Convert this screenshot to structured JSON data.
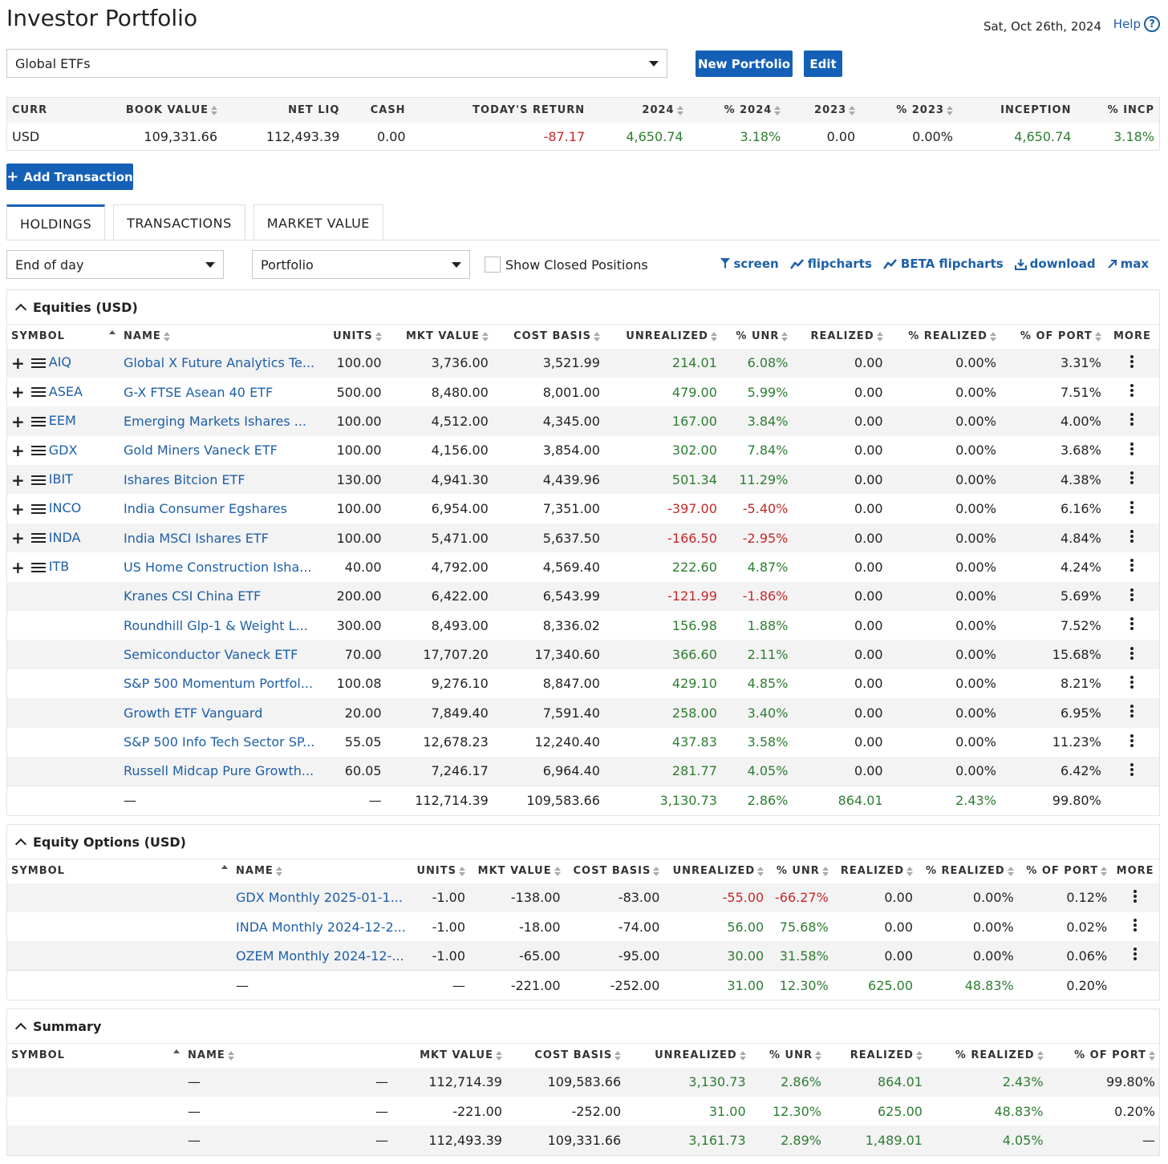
{
  "header": {
    "title": "Investor Portfolio",
    "date": "Sat, Oct 26th, 2024",
    "help_label": "Help",
    "help_icon": "?"
  },
  "portfolio_select": {
    "value": "Global ETFs"
  },
  "buttons": {
    "new_portfolio": "New Portfolio",
    "edit": "Edit",
    "add_transaction": "Add Transaction",
    "add_transaction_icon": "+"
  },
  "summary": {
    "headers": [
      "CURR",
      "BOOK VALUE",
      "NET LIQ",
      "CASH",
      "TODAY'S RETURN",
      "2024",
      "% 2024",
      "2023",
      "% 2023",
      "INCEPTION",
      "% INCP"
    ],
    "values": [
      "USD",
      "109,331.66",
      "112,493.39",
      "0.00",
      "-87.17",
      "4,650.74",
      "3.18%",
      "0.00",
      "0.00%",
      "4,650.74",
      "3.18%"
    ]
  },
  "tabs": [
    "HOLDINGS",
    "TRANSACTIONS",
    "MARKET VALUE"
  ],
  "filters": {
    "period": "End of day",
    "view": "Portfolio",
    "show_closed_label": "Show Closed Positions"
  },
  "toolbar": {
    "screen": "screen",
    "flipcharts": "flipcharts",
    "beta_flipcharts": "BETA flipcharts",
    "download": "download",
    "max": "max"
  },
  "equities": {
    "title": "Equities (USD)",
    "headers": [
      "SYMBOL",
      "NAME",
      "UNITS",
      "MKT VALUE",
      "COST BASIS",
      "UNREALIZED",
      "% UNR",
      "REALIZED",
      "% REALIZED",
      "% OF PORT",
      "MORE"
    ],
    "rows": [
      [
        "AIQ",
        "Global X Future Analytics Te...",
        "100.00",
        "3,736.00",
        "3,521.99",
        "214.01",
        "6.08%",
        "0.00",
        "0.00%",
        "3.31%"
      ],
      [
        "ASEA",
        "G-X FTSE Asean 40 ETF",
        "500.00",
        "8,480.00",
        "8,001.00",
        "479.00",
        "5.99%",
        "0.00",
        "0.00%",
        "7.51%"
      ],
      [
        "EEM",
        "Emerging Markets Ishares ...",
        "100.00",
        "4,512.00",
        "4,345.00",
        "167.00",
        "3.84%",
        "0.00",
        "0.00%",
        "4.00%"
      ],
      [
        "GDX",
        "Gold Miners Vaneck ETF",
        "100.00",
        "4,156.00",
        "3,854.00",
        "302.00",
        "7.84%",
        "0.00",
        "0.00%",
        "3.68%"
      ],
      [
        "IBIT",
        "Ishares Bitcion ETF",
        "130.00",
        "4,941.30",
        "4,439.96",
        "501.34",
        "11.29%",
        "0.00",
        "0.00%",
        "4.38%"
      ],
      [
        "INCO",
        "India Consumer Egshares",
        "100.00",
        "6,954.00",
        "7,351.00",
        "-397.00",
        "-5.40%",
        "0.00",
        "0.00%",
        "6.16%"
      ],
      [
        "INDA",
        "India MSCI Ishares ETF",
        "100.00",
        "5,471.00",
        "5,637.50",
        "-166.50",
        "-2.95%",
        "0.00",
        "0.00%",
        "4.84%"
      ],
      [
        "ITB",
        "US Home Construction Isha...",
        "40.00",
        "4,792.00",
        "4,569.40",
        "222.60",
        "4.87%",
        "0.00",
        "0.00%",
        "4.24%"
      ],
      [
        "",
        "Kranes CSI China ETF",
        "200.00",
        "6,422.00",
        "6,543.99",
        "-121.99",
        "-1.86%",
        "0.00",
        "0.00%",
        "5.69%"
      ],
      [
        "",
        "Roundhill Glp-1 & Weight L...",
        "300.00",
        "8,493.00",
        "8,336.02",
        "156.98",
        "1.88%",
        "0.00",
        "0.00%",
        "7.52%"
      ],
      [
        "",
        "Semiconductor Vaneck ETF",
        "70.00",
        "17,707.20",
        "17,340.60",
        "366.60",
        "2.11%",
        "0.00",
        "0.00%",
        "15.68%"
      ],
      [
        "",
        "S&P 500 Momentum Portfol...",
        "100.08",
        "9,276.10",
        "8,847.00",
        "429.10",
        "4.85%",
        "0.00",
        "0.00%",
        "8.21%"
      ],
      [
        "",
        "Growth ETF Vanguard",
        "20.00",
        "7,849.40",
        "7,591.40",
        "258.00",
        "3.40%",
        "0.00",
        "0.00%",
        "6.95%"
      ],
      [
        "",
        "S&P 500 Info Tech Sector SP...",
        "55.05",
        "12,678.23",
        "12,240.40",
        "437.83",
        "3.58%",
        "0.00",
        "0.00%",
        "11.23%"
      ],
      [
        "",
        "Russell Midcap Pure Growth...",
        "60.05",
        "7,246.17",
        "6,964.40",
        "281.77",
        "4.05%",
        "0.00",
        "0.00%",
        "6.42%"
      ]
    ],
    "total": [
      "",
      "—",
      "—",
      "112,714.39",
      "109,583.66",
      "3,130.73",
      "2.86%",
      "864.01",
      "2.43%",
      "99.80%"
    ]
  },
  "options": {
    "title": "Equity Options (USD)",
    "headers": [
      "SYMBOL",
      "NAME",
      "UNITS",
      "MKT VALUE",
      "COST BASIS",
      "UNREALIZED",
      "% UNR",
      "REALIZED",
      "% REALIZED",
      "% OF PORT",
      "MORE"
    ],
    "rows": [
      [
        "",
        "GDX Monthly 2025-01-1...",
        "-1.00",
        "-138.00",
        "-83.00",
        "-55.00",
        "-66.27%",
        "0.00",
        "0.00%",
        "0.12%"
      ],
      [
        "",
        "INDA Monthly 2024-12-2...",
        "-1.00",
        "-18.00",
        "-74.00",
        "56.00",
        "75.68%",
        "0.00",
        "0.00%",
        "0.02%"
      ],
      [
        "",
        "OZEM Monthly 2024-12-...",
        "-1.00",
        "-65.00",
        "-95.00",
        "30.00",
        "31.58%",
        "0.00",
        "0.00%",
        "0.06%"
      ]
    ],
    "total": [
      "",
      "—",
      "—",
      "-221.00",
      "-252.00",
      "31.00",
      "12.30%",
      "625.00",
      "48.83%",
      "0.20%"
    ]
  },
  "summary_section": {
    "title": "Summary",
    "headers": [
      "SYMBOL",
      "NAME",
      "",
      "MKT VALUE",
      "COST BASIS",
      "UNREALIZED",
      "% UNR",
      "REALIZED",
      "% REALIZED",
      "% OF PORT"
    ],
    "rows": [
      [
        "",
        "—",
        "—",
        "112,714.39",
        "109,583.66",
        "3,130.73",
        "2.86%",
        "864.01",
        "2.43%",
        "99.80%"
      ],
      [
        "",
        "—",
        "—",
        "-221.00",
        "-252.00",
        "31.00",
        "12.30%",
        "625.00",
        "48.83%",
        "0.20%"
      ],
      [
        "",
        "—",
        "—",
        "112,493.39",
        "109,331.66",
        "3,161.73",
        "2.89%",
        "1,489.01",
        "4.05%",
        "—"
      ]
    ]
  },
  "colors": {
    "accent": "#1560b7",
    "link": "#1d5fa7",
    "positive": "#2e7d32",
    "negative": "#c62828"
  }
}
